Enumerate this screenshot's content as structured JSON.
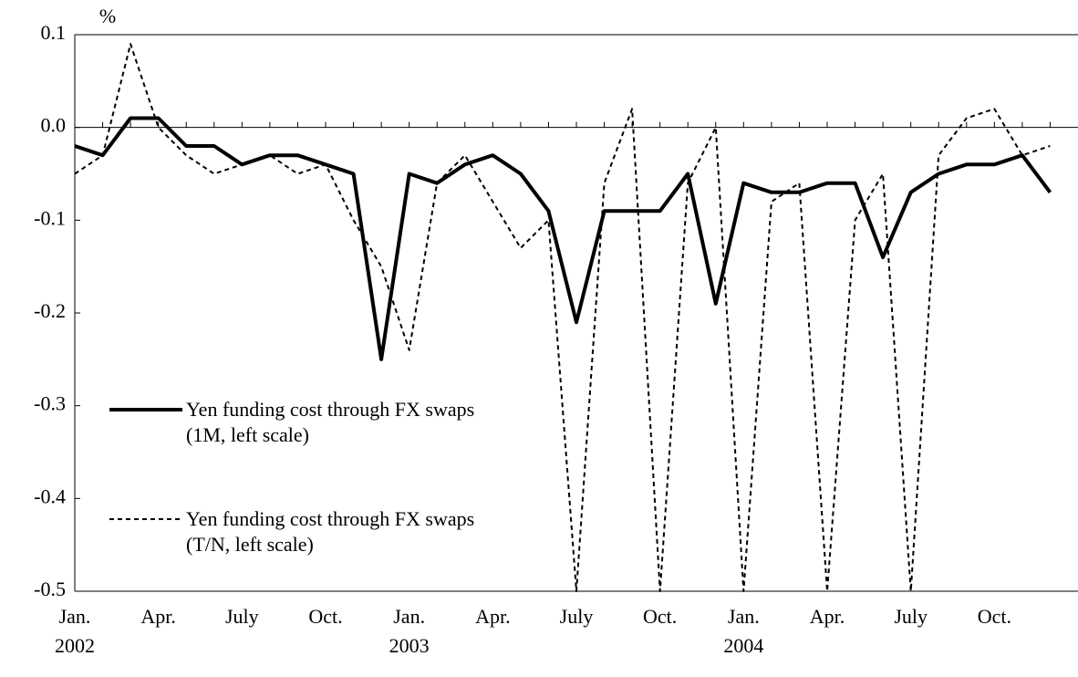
{
  "chart_data": {
    "type": "line",
    "y_unit": "%",
    "categories": [
      "Jan.",
      null,
      null,
      "Apr.",
      null,
      null,
      "July",
      null,
      null,
      "Oct.",
      null,
      null,
      "Jan.",
      null,
      null,
      "Apr.",
      null,
      null,
      "July",
      null,
      null,
      "Oct.",
      null,
      null,
      "Jan.",
      null,
      null,
      "Apr.",
      null,
      null,
      "July",
      null,
      null,
      "Oct.",
      null,
      null
    ],
    "years": [
      "2002",
      "2003",
      "2004"
    ],
    "series": [
      {
        "name": "Yen funding cost through FX swaps (1M, left scale)",
        "color": "#000000",
        "style": "solid",
        "values": [
          -0.02,
          -0.03,
          0.01,
          0.01,
          -0.02,
          -0.02,
          -0.04,
          -0.03,
          -0.03,
          -0.04,
          -0.05,
          -0.25,
          -0.05,
          -0.06,
          -0.04,
          -0.03,
          -0.05,
          -0.09,
          -0.21,
          -0.09,
          -0.09,
          -0.09,
          -0.05,
          -0.19,
          -0.06,
          -0.07,
          -0.07,
          -0.06,
          -0.06,
          -0.14,
          -0.07,
          -0.05,
          -0.04,
          -0.04,
          -0.03,
          -0.07
        ]
      },
      {
        "name": "Yen funding cost through FX swaps (T/N, left scale)",
        "color": "#000000",
        "style": "dashed",
        "values": [
          -0.05,
          -0.03,
          0.09,
          0.0,
          -0.03,
          -0.05,
          -0.04,
          -0.03,
          -0.05,
          -0.04,
          -0.1,
          -0.15,
          -0.24,
          -0.06,
          -0.03,
          -0.08,
          -0.13,
          -0.1,
          -0.5,
          -0.06,
          0.02,
          -0.5,
          -0.06,
          0.0,
          -0.5,
          -0.08,
          -0.06,
          -0.5,
          -0.1,
          -0.05,
          -0.5,
          -0.03,
          0.01,
          0.02,
          -0.03,
          -0.02
        ]
      }
    ],
    "ylim": [
      -0.5,
      0.1
    ],
    "yticks": [
      0.1,
      {
        "value": 0,
        "label": "0.0"
      },
      -0.1,
      -0.2,
      -0.3,
      -0.4,
      -0.5
    ],
    "legend": "lower left"
  }
}
